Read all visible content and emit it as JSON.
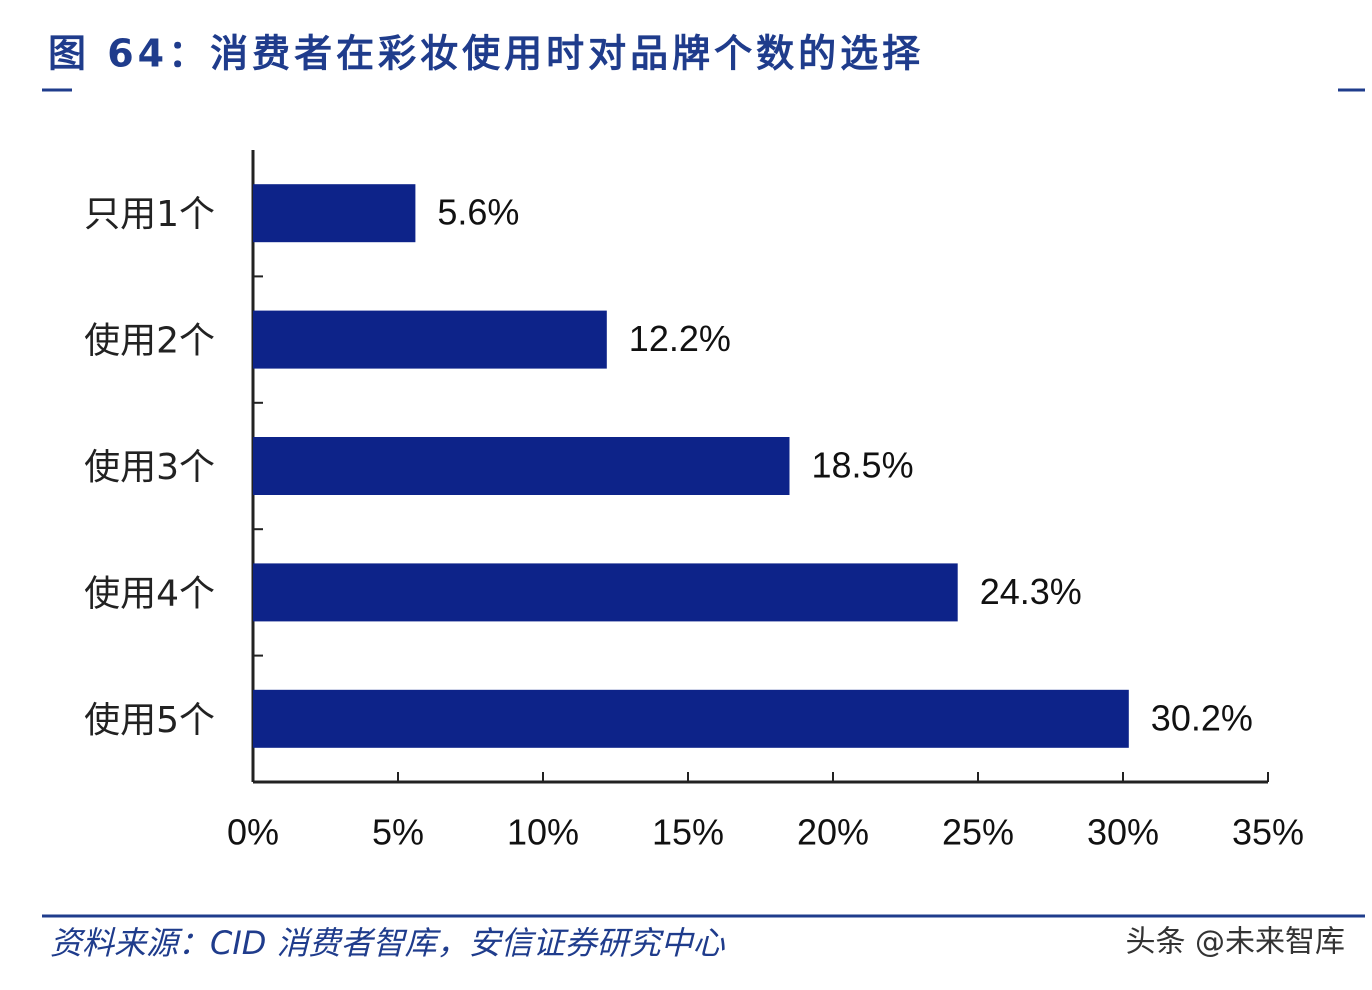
{
  "chart_data": {
    "type": "barh",
    "title": "图 64：消费者在彩妆使用时对品牌个数的选择",
    "source": "资料来源：CID 消费者智库，安信证券研究中心",
    "watermark": "头条 @未来智库",
    "categories": [
      "只用1个",
      "使用2个",
      "使用3个",
      "使用4个",
      "使用5个"
    ],
    "values": [
      5.6,
      12.2,
      18.5,
      24.3,
      30.2
    ],
    "value_labels": [
      "5.6%",
      "12.2%",
      "18.5%",
      "24.3%",
      "30.2%"
    ],
    "color": "#0d2389",
    "xlim": [
      0,
      35
    ],
    "xticks": [
      {
        "value": 0,
        "label": "0%"
      },
      {
        "value": 5,
        "label": "5%"
      },
      {
        "value": 10,
        "label": "10%"
      },
      {
        "value": 15,
        "label": "15%"
      },
      {
        "value": 20,
        "label": "20%"
      },
      {
        "value": 25,
        "label": "25%"
      },
      {
        "value": 30,
        "label": "30%"
      },
      {
        "value": 35,
        "label": "35%"
      }
    ]
  }
}
